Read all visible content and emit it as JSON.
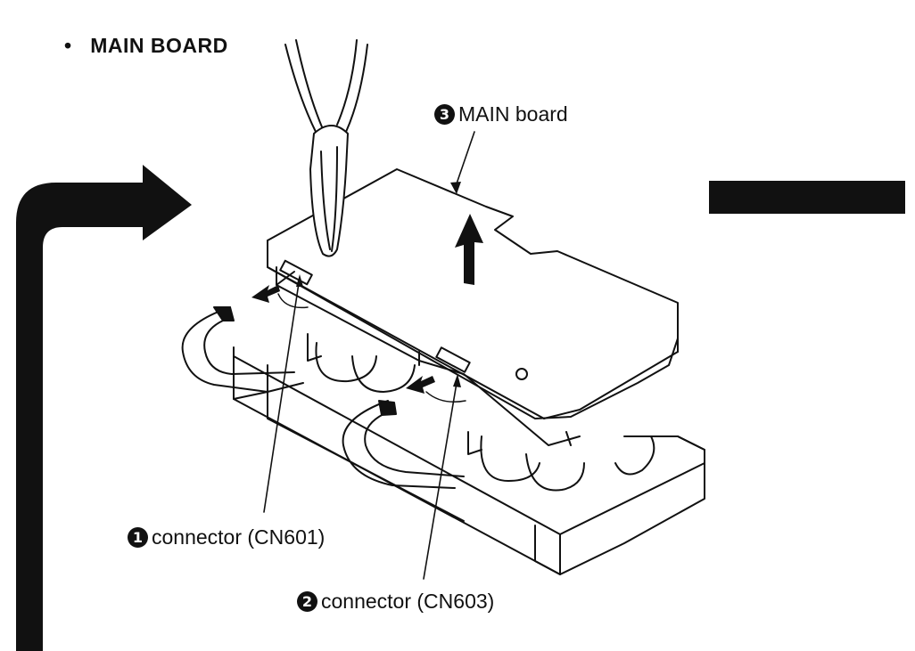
{
  "section_title": "MAIN BOARD",
  "bullet": "•",
  "labels": {
    "main_board": {
      "number": "3",
      "text": "MAIN board"
    },
    "connector_cn601": {
      "number": "1",
      "text": "connector (CN601)"
    },
    "connector_cn603": {
      "number": "2",
      "text": "connector (CN603)"
    }
  },
  "colors": {
    "ink": "#111111",
    "paper": "#ffffff"
  },
  "icons": [
    "pliers-icon",
    "lift-up-arrow-icon",
    "pull-out-arrow-icon",
    "flow-arrow-icon"
  ]
}
